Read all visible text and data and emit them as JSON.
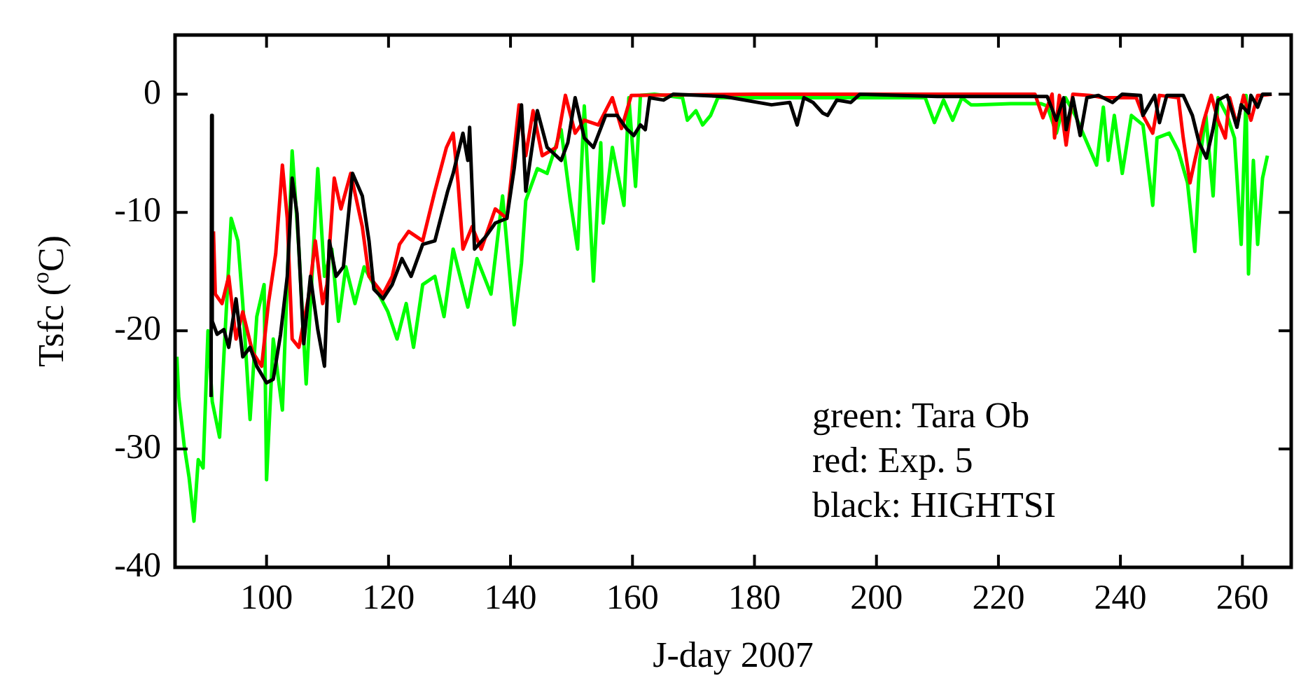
{
  "chart_data": {
    "type": "line",
    "xlabel": "J-day 2007",
    "ylabel": "Tsfc ($^{o}$C)",
    "xlim": [
      85,
      268
    ],
    "xticks": [
      100,
      120,
      140,
      160,
      180,
      200,
      220,
      240,
      260
    ],
    "ylim": [
      -40,
      5
    ],
    "yticks": [
      -40,
      -30,
      -20,
      -10,
      0
    ],
    "annotations": [
      "green: Tara Ob",
      "red: Exp. 5",
      "black: HIGHTSI"
    ],
    "series": [
      {
        "color": "#00ff00",
        "x": [
          85.3,
          85.6,
          86.5,
          87.3,
          88.1,
          88.8,
          89.6,
          90.4,
          91.1,
          92.3,
          94.2,
          95.3,
          96.1,
          97.3,
          98.4,
          99.6,
          100,
          101.1,
          102.6,
          104.2,
          105.3,
          106.5,
          108.4,
          109.5,
          110.7,
          111.8,
          113,
          114.5,
          116,
          118.4,
          119.9,
          121.4,
          122.9,
          124.1,
          125.6,
          127.6,
          129.1,
          130.6,
          133,
          134.5,
          136.8,
          138.7,
          140.6,
          141.8,
          142.5,
          144.4,
          146,
          148.3,
          149.8,
          151,
          152.1,
          153.6,
          154.8,
          155.2,
          156.7,
          158.6,
          159.4,
          160.5,
          161.3,
          163.6,
          168.2,
          169,
          170.4,
          171.5,
          172.8,
          174,
          180,
          190,
          200,
          208,
          209.5,
          211,
          212.5,
          214,
          215.5,
          216.5,
          222,
          227,
          228,
          229.5,
          231,
          232.6,
          236.1,
          237.2,
          238,
          239,
          240.3,
          241.8,
          243.7,
          245.3,
          246,
          248,
          249.5,
          251,
          252.2,
          253,
          254,
          255.2,
          256,
          257.5,
          258.7,
          259.8,
          260.6,
          261,
          261.8,
          262.5,
          263.3,
          264.1
        ],
        "values": [
          -22.2,
          -25.6,
          -29.7,
          -32.4,
          -36.1,
          -30.9,
          -31.6,
          -20,
          -26,
          -29,
          -10.5,
          -12.4,
          -17.7,
          -27.5,
          -18.8,
          -16.1,
          -32.6,
          -20.7,
          -26.7,
          -4.8,
          -13.1,
          -24.5,
          -6.3,
          -15.4,
          -13.1,
          -19.2,
          -14.6,
          -17.7,
          -14.6,
          -16.9,
          -18.4,
          -20.7,
          -17.7,
          -21.4,
          -16.1,
          -15.4,
          -18.8,
          -13.1,
          -18,
          -13.9,
          -16.9,
          -8.6,
          -19.5,
          -14.3,
          -9,
          -6.3,
          -6.7,
          -3,
          -9,
          -13.1,
          -1,
          -15.8,
          -4.1,
          -10.9,
          -4.5,
          -9.4,
          -0.3,
          -7.8,
          -0.1,
          0,
          -0.3,
          -2.2,
          -1.4,
          -2.6,
          -1.8,
          -0.3,
          -0.3,
          -0.3,
          -0.3,
          -0.3,
          -2.4,
          -0.5,
          -2.2,
          -0.3,
          -0.9,
          -0.9,
          -0.8,
          -0.8,
          -1,
          -3.3,
          -0.3,
          -1.8,
          -6,
          -1.1,
          -5.6,
          -1.8,
          -6.7,
          -1.8,
          -2.6,
          -9.4,
          -3.7,
          -3.3,
          -4.8,
          -7.5,
          -13.3,
          -5.6,
          -1.8,
          -8.6,
          -0.3,
          -1.8,
          -3.7,
          -12.7,
          -0.1,
          -15.2,
          -5.6,
          -12.7,
          -7.1,
          -5.2
        ]
      },
      {
        "color": "#ff0000",
        "x": [
          91.3,
          91.6,
          92.7,
          93.8,
          95,
          96.1,
          97.7,
          99.2,
          100.3,
          101.5,
          102.6,
          103.4,
          104.2,
          105.3,
          106.9,
          108,
          109.2,
          109.9,
          111.1,
          112.2,
          113.8,
          115.7,
          116.8,
          119.1,
          120.6,
          121.8,
          123.3,
          125.6,
          127.6,
          129.5,
          130.6,
          131.4,
          132.2,
          133.7,
          135.2,
          137.5,
          139.4,
          140.2,
          141.4,
          142.5,
          143.7,
          145.2,
          147.5,
          149,
          150.6,
          152.1,
          154.4,
          156.7,
          158.2,
          159.8,
          180,
          200,
          220,
          226,
          227.3,
          228.8,
          229.2,
          230,
          231.1,
          232.2,
          235,
          237.2,
          239.5,
          242.6,
          243.7,
          245.3,
          246.4,
          249.5,
          250.3,
          251.4,
          252.2,
          253.7,
          254.9,
          256,
          257.2,
          257.9,
          259.1,
          260.2,
          261.4,
          262.5,
          263.3,
          264.8
        ],
        "values": [
          -11.6,
          -16.9,
          -17.7,
          -15.4,
          -20.7,
          -18.4,
          -21.8,
          -23,
          -17.7,
          -13.5,
          -6,
          -10.5,
          -20.7,
          -21.4,
          -17.1,
          -12.4,
          -17.7,
          -16.1,
          -7.1,
          -9.7,
          -6.7,
          -11.2,
          -15.4,
          -16.9,
          -15.4,
          -12.7,
          -11.6,
          -12.4,
          -8.2,
          -4.5,
          -3.3,
          -7.5,
          -13.1,
          -11.2,
          -13.1,
          -9.7,
          -10.5,
          -6.7,
          -0.9,
          -5.2,
          -1.4,
          -5.2,
          -4.5,
          -0.1,
          -3.3,
          -2.2,
          -2.6,
          -0.3,
          -2.9,
          -0.1,
          0,
          0,
          0,
          0,
          -2,
          0,
          -3.7,
          -0.1,
          -4.3,
          0,
          -0.1,
          -0.3,
          -0.3,
          -0.3,
          -1.8,
          -3.3,
          -0.1,
          -0.3,
          -3.7,
          -7.5,
          -5.6,
          -2.2,
          -0.1,
          -2.2,
          -3.7,
          -0.3,
          -2.6,
          -0.1,
          -2.2,
          -0.1,
          -0.1,
          0
        ]
      },
      {
        "color": "#000000",
        "x": [
          90.9,
          91,
          91.1,
          91.9,
          93,
          93.8,
          95,
          96.1,
          97.3,
          98.4,
          100,
          101.1,
          102.3,
          103.4,
          104.2,
          105,
          106.1,
          107.2,
          108.4,
          109.5,
          110.3,
          111.4,
          112.6,
          114.1,
          115.7,
          116.8,
          117.6,
          119.1,
          120.6,
          122.2,
          123.7,
          125.6,
          127.6,
          129.7,
          130.6,
          132.2,
          133,
          133.3,
          134.1,
          136,
          137.5,
          139.4,
          140.6,
          141.8,
          142.5,
          144.4,
          146,
          148.3,
          149.4,
          150.6,
          152.1,
          153.6,
          155.6,
          157.5,
          159,
          160.2,
          161.3,
          162.1,
          162.8,
          165.1,
          166.7,
          175,
          182.8,
          185.8,
          187,
          188.1,
          189.6,
          191.2,
          192,
          193.5,
          195.8,
          197.3,
          210,
          220,
          228,
          229.5,
          230.7,
          231.1,
          232.2,
          233.4,
          234.5,
          236.4,
          238.7,
          240.3,
          243.3,
          243.7,
          245.6,
          246.4,
          247.6,
          250.3,
          251.8,
          252.9,
          254.1,
          255.2,
          256,
          257.5,
          259.1,
          259.8,
          261,
          261.4,
          262.5,
          263.3,
          264.8
        ],
        "values": [
          -25.6,
          -1.8,
          -19.2,
          -20.3,
          -19.9,
          -21.4,
          -17.3,
          -22.2,
          -21.4,
          -23,
          -24.4,
          -24.1,
          -20.3,
          -15.4,
          -7.1,
          -10.1,
          -21.1,
          -15.4,
          -19.9,
          -23,
          -12.4,
          -15.4,
          -14.6,
          -6.7,
          -8.6,
          -12.4,
          -16.5,
          -17.3,
          -16.1,
          -13.9,
          -15.4,
          -12.7,
          -12.4,
          -8.2,
          -6.7,
          -3.3,
          -5.6,
          -2.8,
          -13.1,
          -12,
          -10.9,
          -10.5,
          -6.3,
          -0.9,
          -8.2,
          -1.4,
          -4.5,
          -5.6,
          -4.1,
          -0.3,
          -3.7,
          -4.5,
          -1.8,
          -1.8,
          -2.9,
          -3.5,
          -2.6,
          -3,
          -0.3,
          -0.5,
          0,
          -0.2,
          -0.9,
          -0.7,
          -2.6,
          -0.3,
          -0.7,
          -1.6,
          -1.8,
          -0.5,
          -0.7,
          0,
          -0.2,
          -0.2,
          -0.2,
          -2.2,
          -0.3,
          -3,
          -0.3,
          -3.5,
          -0.3,
          -0.1,
          -0.7,
          0,
          -0.1,
          -1.8,
          -0.1,
          -2.4,
          -0.1,
          -0.1,
          -1.8,
          -4.1,
          -5.4,
          -2.9,
          -0.5,
          -0.1,
          -2.8,
          -0.9,
          -1.6,
          -0.1,
          -1.1,
          0,
          0
        ]
      }
    ]
  }
}
